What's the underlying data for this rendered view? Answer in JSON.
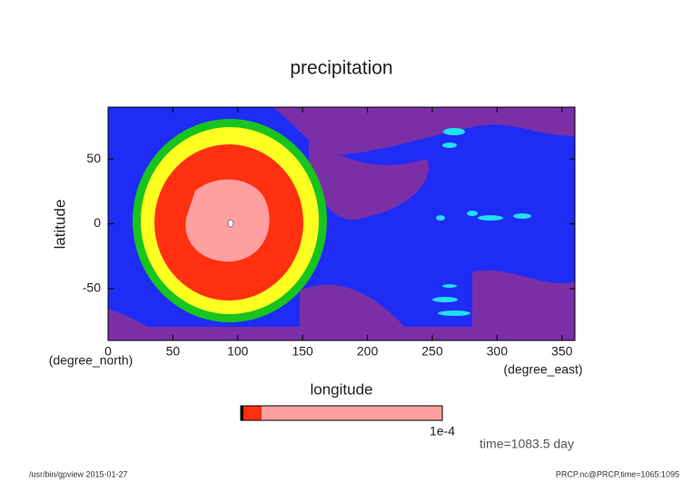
{
  "chart_data": {
    "type": "contour",
    "title": "precipitation",
    "x_label": "longitude",
    "y_label": "latitude",
    "x_units": "(degree_east)",
    "y_units": "(degree_north)",
    "xlim": [
      0,
      360
    ],
    "ylim": [
      -90,
      90
    ],
    "xticks": [
      0,
      50,
      100,
      150,
      200,
      250,
      300,
      350
    ],
    "yticks": [
      -50,
      0,
      50
    ],
    "colorbar_label": "1e-4",
    "time_note": "time=1083.5 day",
    "footer_left": "/usr/bin/gpview  2015-01-27",
    "footer_right": "PRCP.nc@PRCP,time=1065:1095"
  }
}
